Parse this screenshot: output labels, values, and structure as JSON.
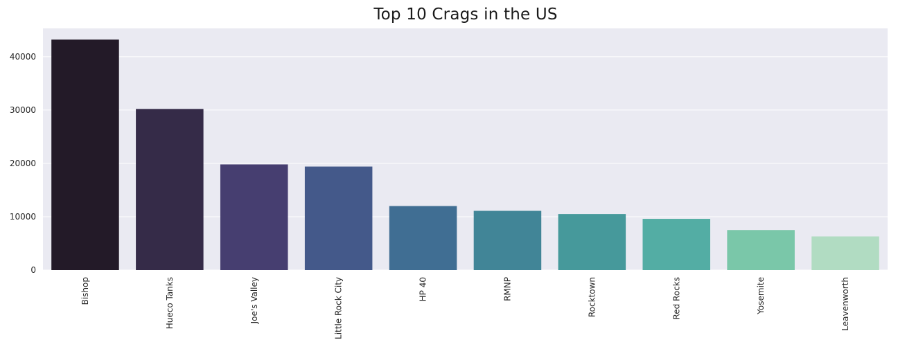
{
  "chart_data": {
    "type": "bar",
    "title": "Top 10 Crags in the US",
    "xlabel": "",
    "ylabel": "",
    "categories": [
      "Bishop",
      "Hueco Tanks",
      "Joe's Valley",
      "Little Rock City",
      "HP 40",
      "RMNP",
      "Rocktown",
      "Red Rocks",
      "Yosemite",
      "Leavenworth"
    ],
    "values": [
      43200,
      30200,
      19800,
      19400,
      12000,
      11100,
      10500,
      9600,
      7500,
      6300
    ],
    "ylim": [
      0,
      45300
    ],
    "yticks": [
      0,
      10000,
      20000,
      30000,
      40000
    ],
    "ytick_labels": [
      "0",
      "10000",
      "20000",
      "30000",
      "40000"
    ],
    "grid": true,
    "plot_background": "#eaeaf2",
    "grid_color": "#ffffff",
    "colors": [
      "#231a28",
      "#352b48",
      "#463e70",
      "#44598a",
      "#406e93",
      "#418597",
      "#46999b",
      "#53ada4",
      "#7ac7a9",
      "#b1dcc2"
    ]
  }
}
